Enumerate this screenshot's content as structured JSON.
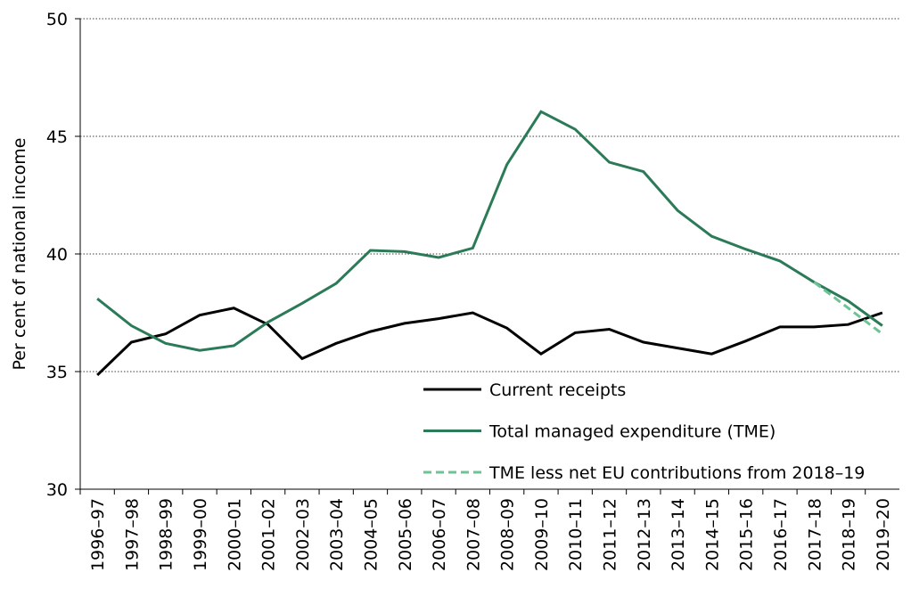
{
  "chart_data": {
    "type": "line",
    "y_label": "Per cent of national income",
    "categories": [
      "1996–97",
      "1997–98",
      "1998–99",
      "1999–00",
      "2000–01",
      "2001–02",
      "2002–03",
      "2003–04",
      "2004–05",
      "2005–06",
      "2006–07",
      "2007–08",
      "2008–09",
      "2009–10",
      "2010–11",
      "2011–12",
      "2012–13",
      "2013–14",
      "2014–15",
      "2015–16",
      "2016–17",
      "2017–18",
      "2018–19",
      "2019–20"
    ],
    "series": [
      {
        "name": "Current receipts",
        "color": "#000000",
        "dash": false,
        "values": [
          34.85,
          36.25,
          36.6,
          37.4,
          37.7,
          37.0,
          35.55,
          36.2,
          36.7,
          37.05,
          37.25,
          37.5,
          36.85,
          35.75,
          36.65,
          36.8,
          36.25,
          36.0,
          35.75,
          36.3,
          36.9,
          36.9,
          37.0,
          37.5
        ]
      },
      {
        "name": "Total managed expenditure (TME)",
        "color": "#2b7a58",
        "dash": false,
        "values": [
          38.1,
          36.95,
          36.2,
          35.9,
          36.1,
          37.1,
          37.9,
          38.75,
          40.15,
          40.1,
          39.85,
          40.25,
          43.8,
          46.05,
          45.3,
          43.9,
          43.5,
          41.85,
          40.75,
          40.2,
          39.7,
          38.8,
          38.0,
          36.95
        ]
      },
      {
        "name": "TME less net EU contributions from 2018–19",
        "color": "#6cc495",
        "dash": true,
        "values": [
          null,
          null,
          null,
          null,
          null,
          null,
          null,
          null,
          null,
          null,
          null,
          null,
          null,
          null,
          null,
          null,
          null,
          null,
          null,
          null,
          null,
          38.8,
          37.7,
          36.6
        ]
      }
    ],
    "ylim": [
      30,
      50
    ],
    "yticks": [
      30,
      35,
      40,
      45,
      50
    ],
    "grid": true,
    "legend": "lower right"
  }
}
